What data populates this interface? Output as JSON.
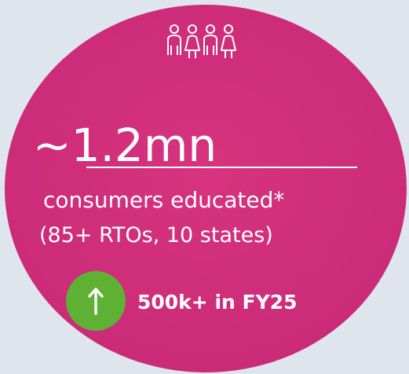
{
  "stat": {
    "headline": "~1.2mn",
    "description": "consumers educated*",
    "detail": "(85+ RTOs, 10 states)",
    "badge": "500k+ in FY25"
  }
}
